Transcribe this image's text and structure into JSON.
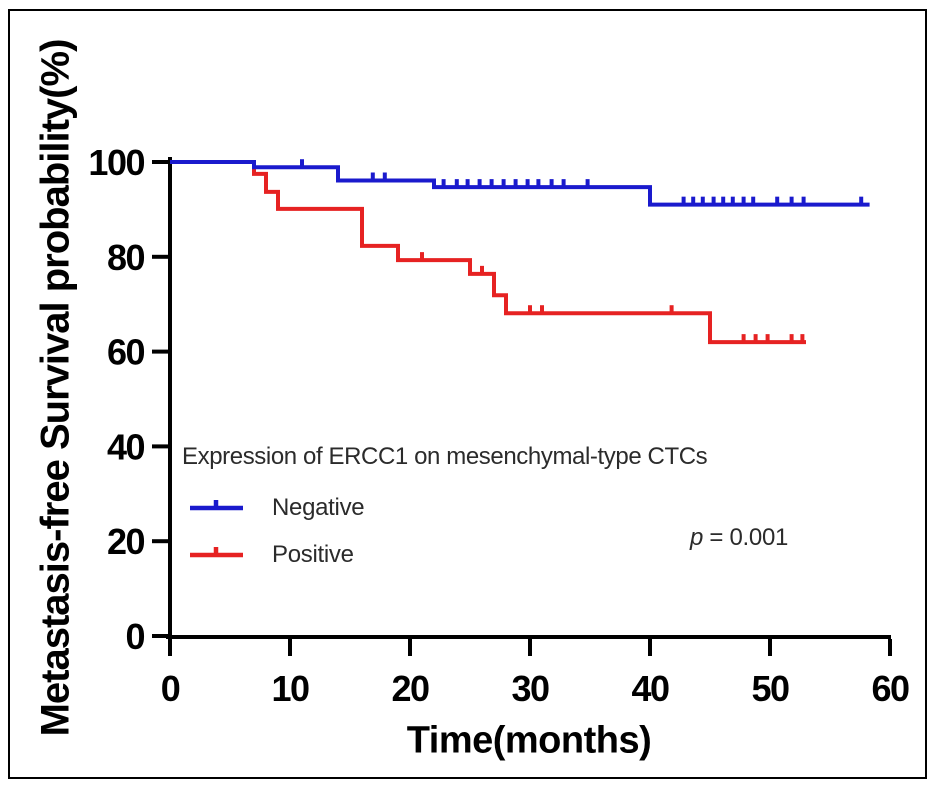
{
  "figure": {
    "ylabel": "Metastasis-free Survival probability(%)",
    "xlabel": "Time(months)",
    "legend_title": "Expression of ERCC1 on mesenchymal-type CTCs",
    "p_symbol": "p",
    "p_rest": " = 0.001",
    "axis_color": "#000000",
    "background": "#ffffff"
  },
  "chart_data": {
    "type": "line",
    "subtype": "kaplan-meier-step-curves",
    "title": "",
    "xlabel": "Time(months)",
    "ylabel": "Metastasis-free Survival probability(%)",
    "xlim": [
      0,
      60
    ],
    "ylim": [
      0,
      100
    ],
    "xticks": [
      0,
      10,
      20,
      30,
      40,
      50,
      60
    ],
    "yticks": [
      0,
      20,
      40,
      60,
      80,
      100
    ],
    "grid": false,
    "legend_title": "Expression of ERCC1 on mesenchymal-type CTCs",
    "legend_position": "inside-lower-left",
    "annotation": "p = 0.001",
    "series": [
      {
        "name": "Negative",
        "color": "#1a1acd",
        "steps": [
          [
            0,
            100
          ],
          [
            7,
            98.9
          ],
          [
            14,
            96.1
          ],
          [
            22,
            94.7
          ],
          [
            40,
            91.0
          ]
        ],
        "end_time": 58.3,
        "censor_marks": [
          [
            11,
            98.9
          ],
          [
            16.9,
            96.1
          ],
          [
            17.9,
            96.1
          ],
          [
            22.8,
            94.7
          ],
          [
            23.9,
            94.7
          ],
          [
            24.8,
            94.7
          ],
          [
            25.8,
            94.7
          ],
          [
            26.8,
            94.7
          ],
          [
            27.8,
            94.7
          ],
          [
            28.8,
            94.7
          ],
          [
            29.8,
            94.7
          ],
          [
            30.7,
            94.7
          ],
          [
            31.8,
            94.7
          ],
          [
            32.8,
            94.7
          ],
          [
            34.8,
            94.7
          ],
          [
            42.8,
            91.0
          ],
          [
            43.6,
            91.0
          ],
          [
            44.4,
            91.0
          ],
          [
            45.3,
            91.0
          ],
          [
            46.1,
            91.0
          ],
          [
            46.9,
            91.0
          ],
          [
            47.8,
            91.0
          ],
          [
            48.6,
            91.0
          ],
          [
            50.6,
            91.0
          ],
          [
            51.8,
            91.0
          ],
          [
            52.8,
            91.0
          ],
          [
            57.6,
            91.0
          ]
        ]
      },
      {
        "name": "Positive",
        "color": "#e62222",
        "steps": [
          [
            0,
            100
          ],
          [
            7,
            97.5
          ],
          [
            8,
            93.7
          ],
          [
            9,
            90.1
          ],
          [
            16,
            82.3
          ],
          [
            19,
            79.3
          ],
          [
            25,
            76.4
          ],
          [
            27,
            71.9
          ],
          [
            28,
            68.1
          ],
          [
            45,
            62.0
          ]
        ],
        "end_time": 53,
        "censor_marks": [
          [
            21,
            79.3
          ],
          [
            26,
            76.4
          ],
          [
            30,
            68.1
          ],
          [
            31,
            68.1
          ],
          [
            41.8,
            68.1
          ],
          [
            47.8,
            62.0
          ],
          [
            48.8,
            62.0
          ],
          [
            49.8,
            62.0
          ],
          [
            51.8,
            62.0
          ],
          [
            52.7,
            62.0
          ]
        ]
      }
    ]
  }
}
